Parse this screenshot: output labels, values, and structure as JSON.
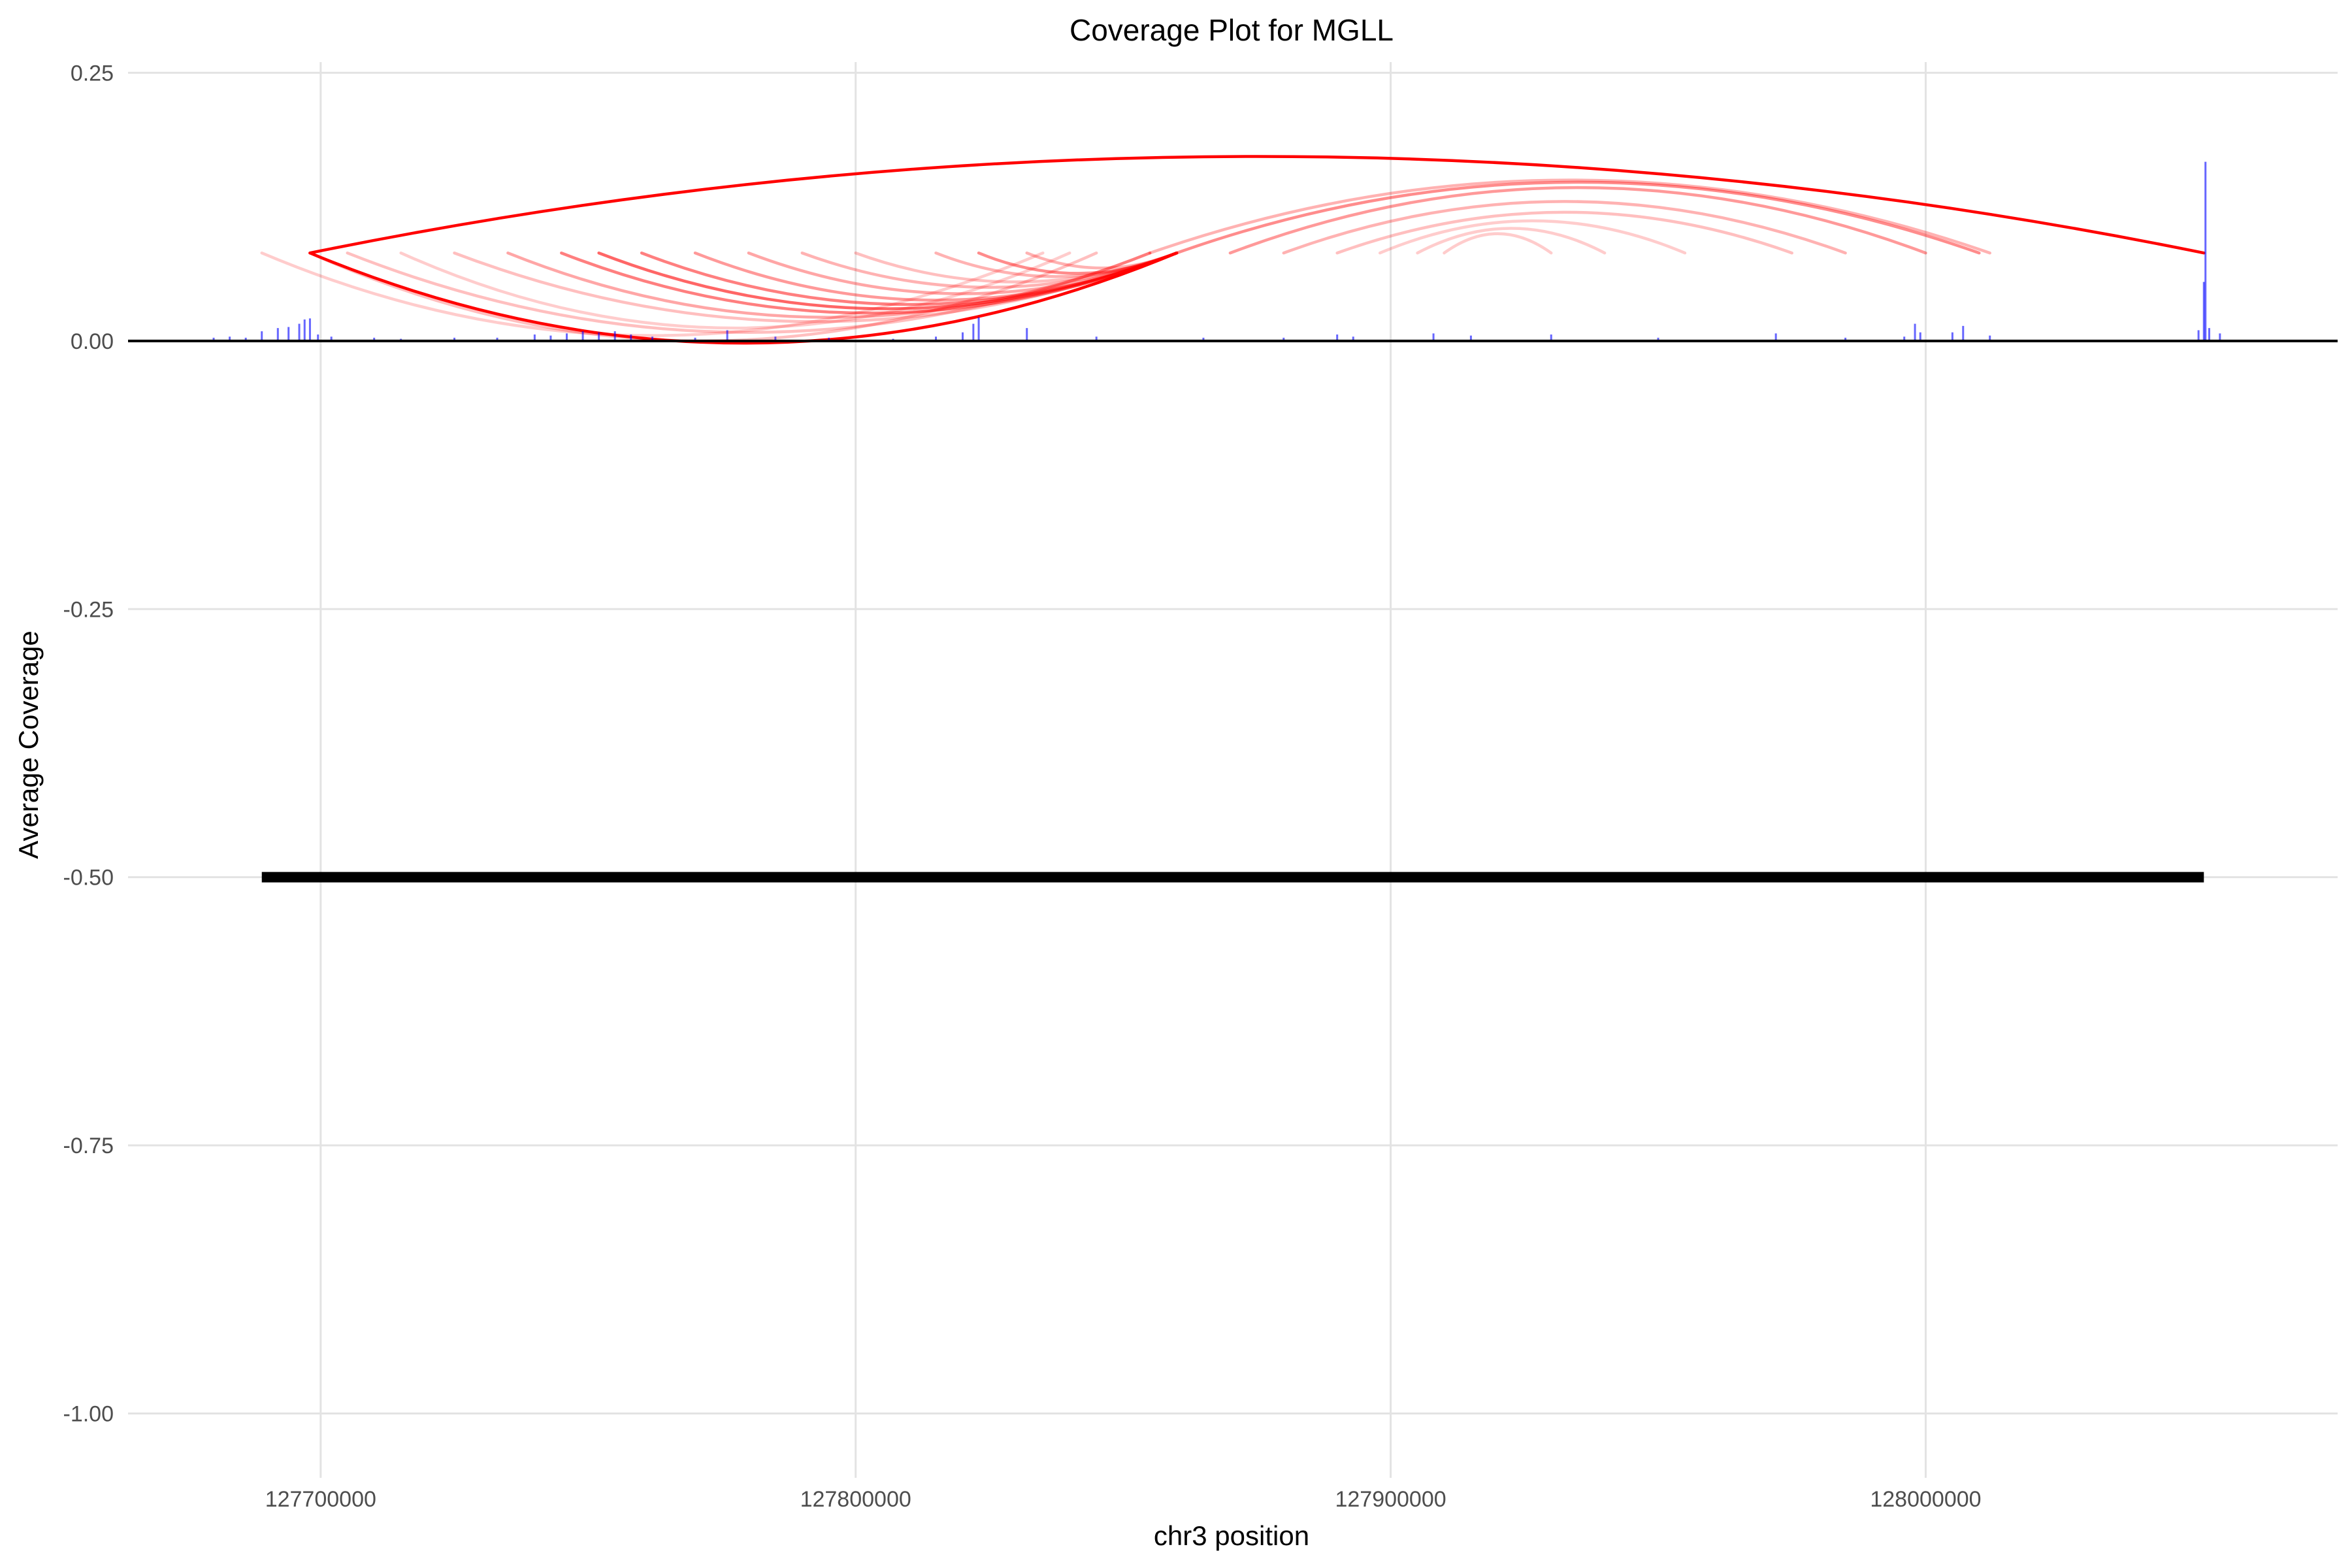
{
  "chart_data": {
    "type": "line",
    "title": "Coverage Plot for MGLL",
    "xlabel": "chr3 position",
    "ylabel": "Average Coverage",
    "xlim": [
      127664000,
      128077000
    ],
    "ylim": [
      -1.06,
      0.26
    ],
    "x_ticks": [
      127700000,
      127800000,
      127900000,
      128000000
    ],
    "x_tick_labels": [
      "127700000",
      "127800000",
      "127900000",
      "128000000"
    ],
    "y_ticks": [
      0.25,
      0.0,
      -0.25,
      -0.5,
      -0.75,
      -1.0
    ],
    "y_tick_labels": [
      "0.25",
      "0.00",
      "-0.25",
      "-0.50",
      "-0.75",
      "-1.00"
    ],
    "grid": true,
    "colors": {
      "arc": "#ff0000",
      "coverage": "#0000ff",
      "gene": "#000000",
      "baseline": "#000000"
    },
    "gene_track": {
      "start": 127689000,
      "end": 128052000,
      "y": -0.5
    },
    "coverage_peaks": [
      [
        127680000,
        0.003
      ],
      [
        127683000,
        0.004
      ],
      [
        127686000,
        0.003
      ],
      [
        127689000,
        0.009
      ],
      [
        127692000,
        0.012
      ],
      [
        127694000,
        0.013
      ],
      [
        127696000,
        0.016
      ],
      [
        127697000,
        0.02
      ],
      [
        127698000,
        0.021
      ],
      [
        127699500,
        0.006
      ],
      [
        127702000,
        0.004
      ],
      [
        127710000,
        0.003
      ],
      [
        127715000,
        0.002
      ],
      [
        127725000,
        0.003
      ],
      [
        127733000,
        0.003
      ],
      [
        127740000,
        0.006
      ],
      [
        127743000,
        0.005
      ],
      [
        127746000,
        0.007
      ],
      [
        127749000,
        0.009
      ],
      [
        127752000,
        0.008
      ],
      [
        127755000,
        0.009
      ],
      [
        127758000,
        0.006
      ],
      [
        127762000,
        0.004
      ],
      [
        127770000,
        0.003
      ],
      [
        127776000,
        0.01
      ],
      [
        127785000,
        0.004
      ],
      [
        127795000,
        0.003
      ],
      [
        127807000,
        0.002
      ],
      [
        127815000,
        0.004
      ],
      [
        127820000,
        0.008
      ],
      [
        127822000,
        0.016
      ],
      [
        127823000,
        0.022
      ],
      [
        127832000,
        0.012
      ],
      [
        127845000,
        0.004
      ],
      [
        127865000,
        0.003
      ],
      [
        127880000,
        0.003
      ],
      [
        127890000,
        0.006
      ],
      [
        127893000,
        0.004
      ],
      [
        127908000,
        0.007
      ],
      [
        127915000,
        0.005
      ],
      [
        127930000,
        0.006
      ],
      [
        127950000,
        0.003
      ],
      [
        127972000,
        0.007
      ],
      [
        127985000,
        0.003
      ],
      [
        127996000,
        0.004
      ],
      [
        127998000,
        0.016
      ],
      [
        127999000,
        0.008
      ],
      [
        128005000,
        0.008
      ],
      [
        128007000,
        0.014
      ],
      [
        128012000,
        0.005
      ],
      [
        128051000,
        0.01
      ],
      [
        128052000,
        0.055
      ],
      [
        128052300,
        0.167
      ],
      [
        128053000,
        0.012
      ],
      [
        128055000,
        0.007
      ]
    ],
    "junction_arcs": [
      {
        "start": 127698000,
        "end": 128052000,
        "peak": 0.172,
        "emphasis": 1.0
      },
      {
        "start": 127698000,
        "end": 127860000,
        "peak": -0.002,
        "emphasis": 1.0
      },
      {
        "start": 127698000,
        "end": 127845000,
        "peak": 0.0,
        "emphasis": 0.25
      },
      {
        "start": 127689000,
        "end": 127835000,
        "peak": 0.005,
        "emphasis": 0.2
      },
      {
        "start": 127705000,
        "end": 127855000,
        "peak": 0.008,
        "emphasis": 0.25
      },
      {
        "start": 127715000,
        "end": 127840000,
        "peak": 0.012,
        "emphasis": 0.2
      },
      {
        "start": 127725000,
        "end": 127860000,
        "peak": 0.018,
        "emphasis": 0.25
      },
      {
        "start": 127735000,
        "end": 127855000,
        "peak": 0.022,
        "emphasis": 0.35
      },
      {
        "start": 127745000,
        "end": 127860000,
        "peak": 0.026,
        "emphasis": 0.5
      },
      {
        "start": 127752000,
        "end": 127860000,
        "peak": 0.03,
        "emphasis": 0.6
      },
      {
        "start": 127760000,
        "end": 127860000,
        "peak": 0.034,
        "emphasis": 0.5
      },
      {
        "start": 127770000,
        "end": 127860000,
        "peak": 0.038,
        "emphasis": 0.4
      },
      {
        "start": 127780000,
        "end": 127860000,
        "peak": 0.044,
        "emphasis": 0.35
      },
      {
        "start": 127790000,
        "end": 127860000,
        "peak": 0.05,
        "emphasis": 0.3
      },
      {
        "start": 127800000,
        "end": 127860000,
        "peak": 0.055,
        "emphasis": 0.25
      },
      {
        "start": 127815000,
        "end": 127860000,
        "peak": 0.06,
        "emphasis": 0.3
      },
      {
        "start": 127823000,
        "end": 127860000,
        "peak": 0.063,
        "emphasis": 0.45
      },
      {
        "start": 127832000,
        "end": 127860000,
        "peak": 0.068,
        "emphasis": 0.3
      },
      {
        "start": 127855000,
        "end": 128012000,
        "peak": 0.15,
        "emphasis": 0.3
      },
      {
        "start": 127860000,
        "end": 128010000,
        "peak": 0.148,
        "emphasis": 0.45
      },
      {
        "start": 127870000,
        "end": 128000000,
        "peak": 0.143,
        "emphasis": 0.4
      },
      {
        "start": 127880000,
        "end": 127985000,
        "peak": 0.13,
        "emphasis": 0.3
      },
      {
        "start": 127890000,
        "end": 127975000,
        "peak": 0.12,
        "emphasis": 0.25
      },
      {
        "start": 127898000,
        "end": 127955000,
        "peak": 0.112,
        "emphasis": 0.2
      },
      {
        "start": 127905000,
        "end": 127940000,
        "peak": 0.105,
        "emphasis": 0.2
      },
      {
        "start": 127910000,
        "end": 127930000,
        "peak": 0.1,
        "emphasis": 0.2
      }
    ]
  }
}
